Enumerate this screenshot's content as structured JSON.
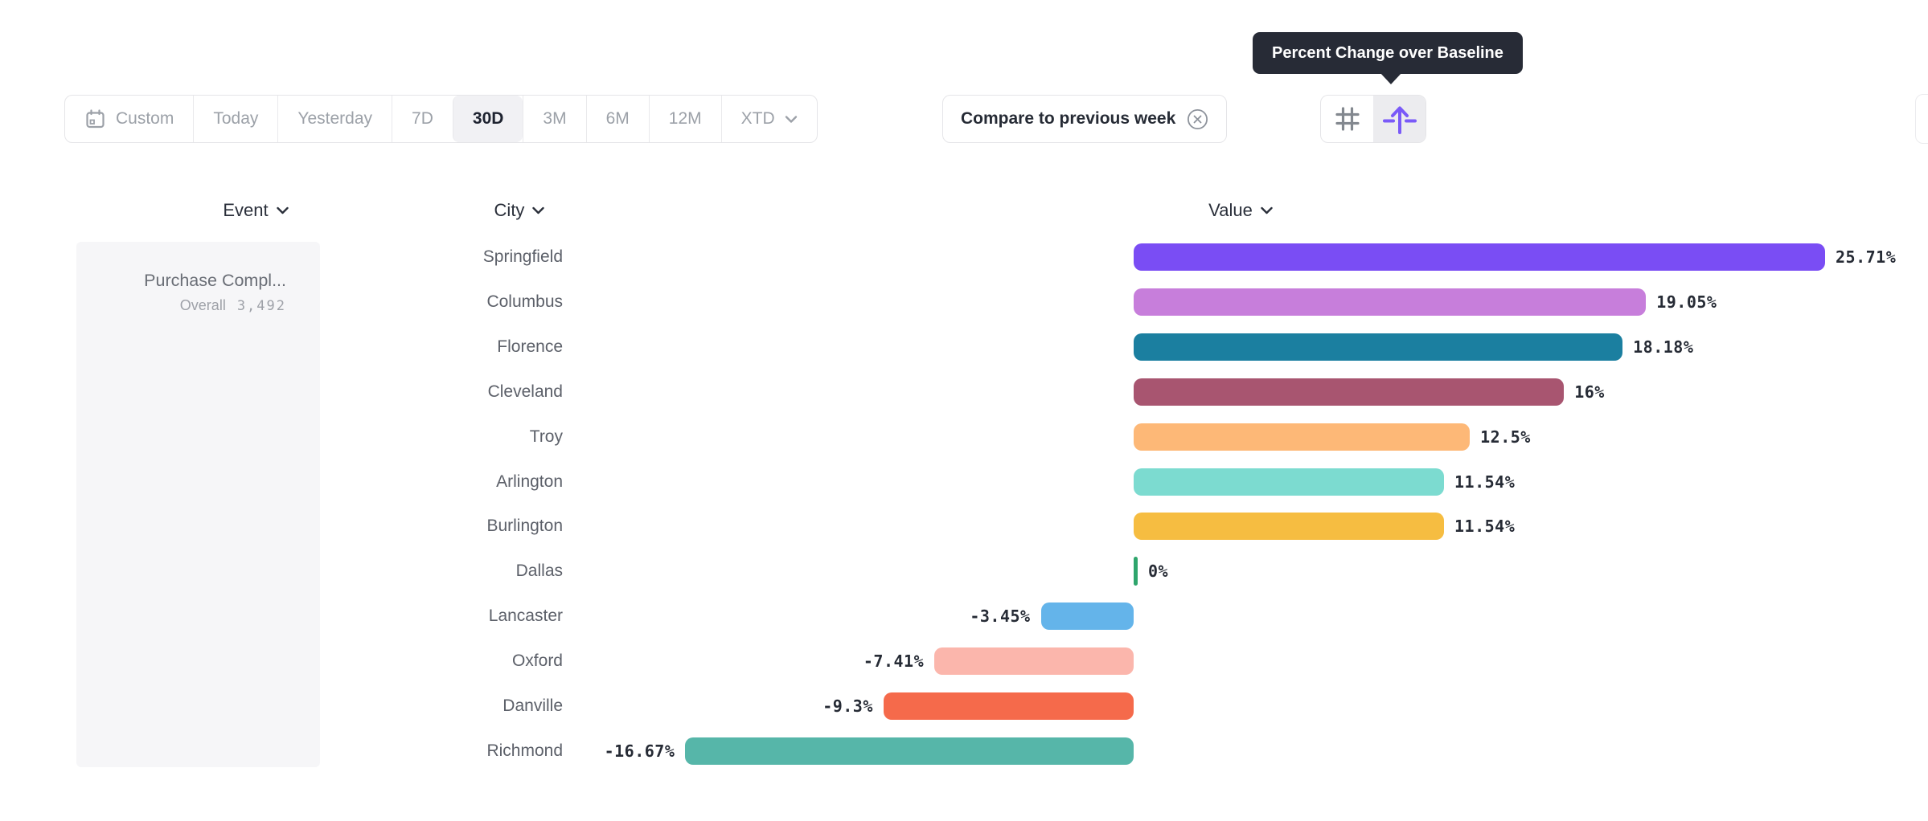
{
  "tooltip": {
    "text": "Percent Change over Baseline"
  },
  "toolbar": {
    "date_ranges": [
      {
        "label": "Custom",
        "icon": "calendar-icon",
        "selected": false
      },
      {
        "label": "Today",
        "selected": false
      },
      {
        "label": "Yesterday",
        "selected": false
      },
      {
        "label": "7D",
        "selected": false
      },
      {
        "label": "30D",
        "selected": true
      },
      {
        "label": "3M",
        "selected": false
      },
      {
        "label": "6M",
        "selected": false
      },
      {
        "label": "12M",
        "selected": false
      },
      {
        "label": "XTD",
        "chevron": true,
        "selected": false
      }
    ],
    "compare_button": {
      "label": "Compare to previous week",
      "icon": "circle-x-icon"
    },
    "view_toggle": [
      {
        "name": "grid-view",
        "icon": "hash-icon",
        "selected": false
      },
      {
        "name": "uplift-view",
        "icon": "arrow-up-baseline-icon",
        "selected": true
      }
    ]
  },
  "columns": {
    "event": "Event",
    "city": "City",
    "value": "Value"
  },
  "event_panel": {
    "name": "Purchase Compl...",
    "overall_label": "Overall",
    "overall_value": "3,492"
  },
  "chart_data": {
    "type": "bar",
    "orientation": "horizontal",
    "title": "Percent Change over Baseline",
    "unit": "%",
    "baseline": 0,
    "categories": [
      "Springfield",
      "Columbus",
      "Florence",
      "Cleveland",
      "Troy",
      "Arlington",
      "Burlington",
      "Dallas",
      "Lancaster",
      "Oxford",
      "Danville",
      "Richmond"
    ],
    "values": [
      25.71,
      19.05,
      18.18,
      16,
      12.5,
      11.54,
      11.54,
      0,
      -3.45,
      -7.41,
      -9.3,
      -16.67
    ],
    "labels": [
      "25.71%",
      "19.05%",
      "18.18%",
      "16%",
      "12.5%",
      "11.54%",
      "11.54%",
      "0%",
      "-3.45%",
      "-7.41%",
      "-9.3%",
      "-16.67%"
    ],
    "colors": [
      "#7A4DF4",
      "#C77EDB",
      "#1B7FA0",
      "#A85570",
      "#FDB877",
      "#7CDBD0",
      "#F6BD41",
      "#2EA56C",
      "#64B4EA",
      "#FBB6AC",
      "#F56A4B",
      "#56B6A9"
    ]
  },
  "theme": {
    "accent_purple": "#7A5AF8",
    "tooltip_bg": "#272B36",
    "border": "#E5E5E8",
    "muted_text": "#9CA1A8",
    "dark_text": "#262B35",
    "panel_bg": "#F6F6F8",
    "selected_bg": "#F1F1F4"
  }
}
